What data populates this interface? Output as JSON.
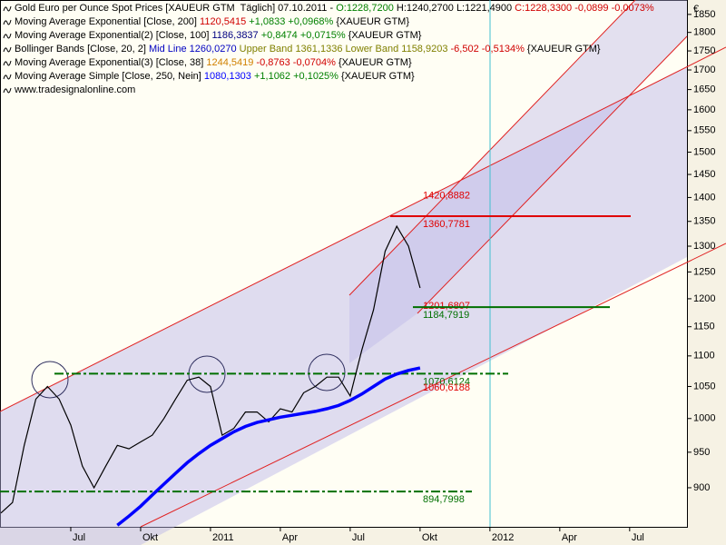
{
  "legend": [
    {
      "parts": [
        {
          "text": "Gold Euro per Ounce Spot Prices [XAUEUR GTM  Täglich] 07.10.2011 - ",
          "color": "#000000"
        },
        {
          "text": "O:1228,7200",
          "color": "#008000"
        },
        {
          "text": " H:1240,2700 L:1221,4900 ",
          "color": "#000000"
        },
        {
          "text": "C:1228,3300 -0,0899 -0,0073%",
          "color": "#d00000"
        }
      ]
    },
    {
      "parts": [
        {
          "text": "Moving Average Exponential [Close, 200] ",
          "color": "#000000"
        },
        {
          "text": "1120,5415",
          "color": "#d00000"
        },
        {
          "text": " +1,0833 +0,0968%",
          "color": "#008000"
        },
        {
          "text": " {XAUEUR GTM}",
          "color": "#000000"
        }
      ]
    },
    {
      "parts": [
        {
          "text": "Moving Average Exponential(2) [Close, 100] ",
          "color": "#000000"
        },
        {
          "text": "1186,3837",
          "color": "#000080"
        },
        {
          "text": " +0,8474 +0,0715%",
          "color": "#008000"
        },
        {
          "text": " {XAUEUR GTM}",
          "color": "#000000"
        }
      ]
    },
    {
      "parts": [
        {
          "text": "Bollinger Bands [Close, 20, 2] ",
          "color": "#000000"
        },
        {
          "text": "Mid Line 1260,0270",
          "color": "#0000c0"
        },
        {
          "text": " Upper Band 1361,1336",
          "color": "#808000"
        },
        {
          "text": " Lower Band 1158,9203",
          "color": "#808000"
        },
        {
          "text": " -6,502 -0,5134%",
          "color": "#d00000"
        },
        {
          "text": " {XAUEUR GTM}",
          "color": "#000000"
        }
      ]
    },
    {
      "parts": [
        {
          "text": "Moving Average Exponential(3) [Close, 38] ",
          "color": "#000000"
        },
        {
          "text": "1244,5419",
          "color": "#d08000"
        },
        {
          "text": " -0,8763 -0,0704%",
          "color": "#d00000"
        },
        {
          "text": " {XAUEUR GTM}",
          "color": "#000000"
        }
      ]
    },
    {
      "parts": [
        {
          "text": "Moving Average Simple [Close, 250, Nein] ",
          "color": "#000000"
        },
        {
          "text": "1080,1303",
          "color": "#0000ff"
        },
        {
          "text": " +1,1062 +0,1025%",
          "color": "#008000"
        },
        {
          "text": " {XAUEUR GTM}",
          "color": "#000000"
        }
      ]
    },
    {
      "parts": [
        {
          "text": "www.tradesignalonline.com",
          "color": "#000000"
        }
      ]
    }
  ],
  "chart_data": {
    "type": "line",
    "log_scale": true,
    "grid": false,
    "y_unit": "€",
    "categories": [
      null,
      null,
      null,
      null,
      null,
      null,
      "Jul",
      null,
      null,
      null,
      null,
      null,
      "Okt",
      null,
      null,
      null,
      null,
      null,
      "2011",
      null,
      null,
      null,
      null,
      null,
      "Apr",
      null,
      null,
      null,
      null,
      null,
      "Jul",
      null,
      null,
      null,
      null,
      null,
      "Okt",
      null,
      null,
      null,
      null,
      null,
      "2012",
      null,
      null,
      null,
      null,
      null,
      "Apr",
      null,
      null,
      null,
      null,
      null,
      "Jul",
      null,
      null,
      null,
      null
    ],
    "series": [
      {
        "color": "#000000",
        "values": [
          866,
          880,
          960,
          1030,
          1050,
          1030,
          990,
          930,
          900,
          930,
          960,
          955,
          965,
          975,
          1000,
          1030,
          1060,
          1065,
          1050,
          975,
          985,
          1010,
          1010,
          995,
          1015,
          1010,
          1040,
          1050,
          1065,
          1065,
          1035,
          1110,
          1180,
          1290,
          1340,
          1300,
          1220,
          null,
          null,
          null,
          null,
          null,
          null,
          null,
          null,
          null,
          null,
          null,
          null,
          null,
          null,
          null,
          null,
          null,
          null,
          null,
          null,
          null,
          null
        ]
      },
      {
        "color": "#0000ff",
        "values": [
          null,
          null,
          null,
          null,
          null,
          null,
          null,
          null,
          null,
          null,
          850,
          862,
          875,
          890,
          905,
          920,
          935,
          948,
          960,
          970,
          980,
          988,
          994,
          998,
          1002,
          1005,
          1008,
          1011,
          1015,
          1020,
          1028,
          1038,
          1050,
          1062,
          1070,
          1076,
          1080,
          null,
          null,
          null,
          null,
          null,
          null,
          null,
          null,
          null,
          null,
          null,
          null,
          null,
          null,
          null,
          null,
          null,
          null,
          null,
          null,
          null,
          null
        ]
      }
    ],
    "ylim": [
      848,
      1878
    ],
    "yticks": [
      900,
      950,
      1000,
      1050,
      1100,
      1150,
      1200,
      1250,
      1300,
      1350,
      1400,
      1450,
      1500,
      1550,
      1600,
      1650,
      1700,
      1750,
      1800,
      1850
    ],
    "levels": [
      {
        "value": 1420.8882,
        "label": "1420,8882",
        "color": "#e00000"
      },
      {
        "value": 1360.7781,
        "label": "1360,7781",
        "color": "#e00000"
      },
      {
        "value": 1201.6807,
        "label": "1201,6807",
        "color": "#e00000"
      },
      {
        "value": 1184.7919,
        "label": "1184,7919",
        "color": "#007000"
      },
      {
        "value": 1070.6124,
        "label": "1070,6124",
        "color": "#007000"
      },
      {
        "value": 1060.6188,
        "label": "1060,6188",
        "color": "#e00000"
      },
      {
        "value": 894.7998,
        "label": "894,7998",
        "color": "#007000"
      }
    ]
  }
}
